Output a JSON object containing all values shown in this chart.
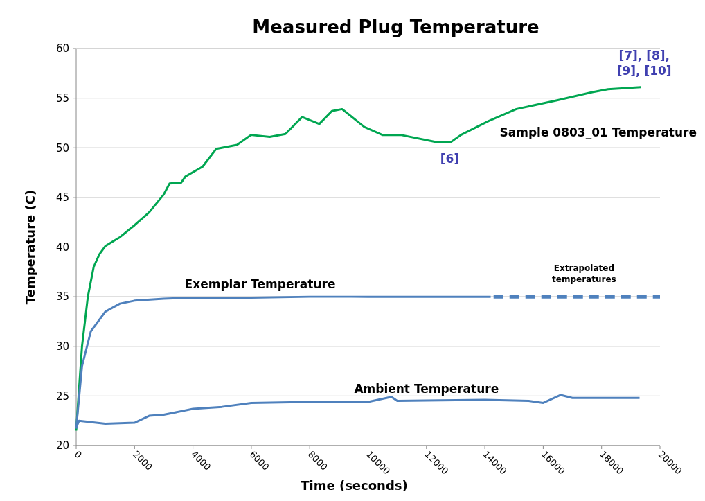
{
  "chart_data": {
    "type": "line",
    "title": "Measured Plug Temperature",
    "xlabel": "Time (seconds)",
    "ylabel": "Temperature (C)",
    "xlim": [
      0,
      20000
    ],
    "xticks": [
      0,
      2000,
      4000,
      6000,
      8000,
      10000,
      12000,
      14000,
      16000,
      18000,
      20000
    ],
    "ylim": [
      20,
      60
    ],
    "yticks": [
      20,
      25,
      30,
      35,
      40,
      45,
      50,
      55,
      60
    ],
    "grid": "y",
    "line_style": "solid",
    "marker": "none",
    "series": [
      {
        "name": "Sample 0803_01 Temperature",
        "color": "#00a651",
        "x": [
          0,
          200,
          400,
          600,
          800,
          1000,
          1500,
          2000,
          2500,
          3000,
          3200,
          3600,
          3740,
          4330,
          4800,
          5510,
          5990,
          6630,
          7170,
          7740,
          8330,
          8760,
          9110,
          9870,
          10490,
          11120,
          12310,
          12850,
          13180,
          14130,
          15080,
          16500,
          17680,
          18220,
          19340
        ],
        "values": [
          21.5,
          30,
          35,
          38,
          39.3,
          40.1,
          41,
          42.2,
          43.5,
          45.3,
          46.4,
          46.5,
          47.1,
          48.1,
          49.9,
          50.3,
          51.3,
          51.1,
          51.4,
          53.1,
          52.4,
          53.7,
          53.9,
          52.1,
          51.3,
          51.3,
          50.6,
          50.6,
          51.3,
          52.7,
          53.9,
          54.8,
          55.6,
          55.9,
          56.1
        ]
      },
      {
        "name": "Exemplar Temperature",
        "color": "#4f81bd",
        "x": [
          0,
          200,
          500,
          1000,
          1500,
          2000,
          3000,
          4000,
          6000,
          8000,
          10000,
          12000,
          14200
        ],
        "values": [
          21.7,
          28,
          31.5,
          33.5,
          34.3,
          34.6,
          34.8,
          34.9,
          34.9,
          35,
          35,
          35,
          35
        ]
      },
      {
        "name": "Extrapolated temperatures",
        "color": "#4f81bd",
        "line_style": "dashed",
        "x": [
          14300,
          20000
        ],
        "values": [
          35,
          35
        ]
      },
      {
        "name": "Ambient Temperature",
        "color": "#4f81bd",
        "x": [
          0,
          100,
          1000,
          2000,
          2500,
          3000,
          4000,
          5000,
          6000,
          8000,
          10000,
          10800,
          11000,
          14000,
          15500,
          16000,
          16600,
          17000,
          19300
        ],
        "values": [
          21.8,
          22.5,
          22.2,
          22.3,
          23,
          23.1,
          23.7,
          23.9,
          24.3,
          24.4,
          24.4,
          24.9,
          24.5,
          24.6,
          24.5,
          24.3,
          25.1,
          24.8,
          24.8
        ]
      }
    ],
    "annotations": [
      {
        "text": "[6]",
        "x": 12800,
        "y": 50.6
      },
      {
        "text": "[7], [8], [9], [10]",
        "x": 19340,
        "y": 56.1
      }
    ]
  }
}
